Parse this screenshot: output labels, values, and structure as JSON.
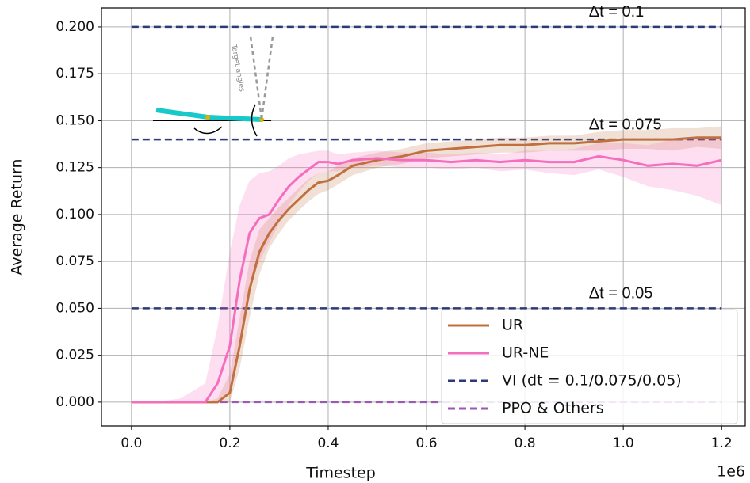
{
  "chart_data": {
    "type": "line",
    "xlabel": "Timestep",
    "ylabel": "Average Return",
    "x_offset_label": "1e6",
    "xlim": [
      -0.061,
      1.248
    ],
    "ylim": [
      -0.0127,
      0.2101
    ],
    "xticks": [
      {
        "value": 0,
        "label": "0.0"
      },
      0.2,
      0.4,
      0.6,
      0.8,
      {
        "value": 1,
        "label": "1.0"
      },
      1.2
    ],
    "yticks": [
      {
        "value": 0,
        "label": "0.000"
      },
      {
        "value": 0.025,
        "label": "0.025"
      },
      {
        "value": 0.05,
        "label": "0.050"
      },
      {
        "value": 0.075,
        "label": "0.075"
      },
      {
        "value": 0.1,
        "label": "0.100"
      },
      {
        "value": 0.125,
        "label": "0.125"
      },
      {
        "value": 0.15,
        "label": "0.150"
      },
      {
        "value": 0.175,
        "label": "0.175"
      },
      {
        "value": 0.2,
        "label": "0.200"
      }
    ],
    "grid": true,
    "legend": "lower right",
    "x": [
      0,
      0.05,
      0.1,
      0.15,
      0.175,
      0.2,
      0.22,
      0.24,
      0.26,
      0.28,
      0.3,
      0.32,
      0.34,
      0.36,
      0.38,
      0.4,
      0.42,
      0.45,
      0.5,
      0.55,
      0.6,
      0.65,
      0.7,
      0.75,
      0.8,
      0.85,
      0.9,
      0.95,
      1.0,
      1.05,
      1.1,
      1.15,
      1.2
    ],
    "series": [
      {
        "name": "UR",
        "color": "#c0703f",
        "values": [
          0,
          0,
          0,
          0,
          0,
          0.005,
          0.03,
          0.06,
          0.08,
          0.09,
          0.097,
          0.103,
          0.108,
          0.113,
          0.117,
          0.118,
          0.121,
          0.126,
          0.129,
          0.131,
          0.134,
          0.135,
          0.136,
          0.137,
          0.137,
          0.138,
          0.138,
          0.139,
          0.14,
          0.14,
          0.14,
          0.141,
          0.141
        ],
        "lower": [
          0,
          0,
          0,
          0,
          0,
          0,
          0.018,
          0.045,
          0.068,
          0.082,
          0.09,
          0.097,
          0.102,
          0.107,
          0.111,
          0.113,
          0.116,
          0.121,
          0.125,
          0.127,
          0.13,
          0.131,
          0.132,
          0.133,
          0.133,
          0.134,
          0.134,
          0.134,
          0.135,
          0.135,
          0.134,
          0.136,
          0.135
        ],
        "upper": [
          0,
          0,
          0,
          0,
          0.002,
          0.015,
          0.045,
          0.075,
          0.092,
          0.098,
          0.104,
          0.109,
          0.114,
          0.119,
          0.122,
          0.123,
          0.126,
          0.13,
          0.133,
          0.135,
          0.138,
          0.139,
          0.14,
          0.141,
          0.141,
          0.142,
          0.142,
          0.144,
          0.145,
          0.145,
          0.146,
          0.146,
          0.147
        ]
      },
      {
        "name": "UR-NE",
        "color": "#f56ebd",
        "values": [
          0,
          0,
          0,
          0,
          0.01,
          0.03,
          0.065,
          0.09,
          0.098,
          0.1,
          0.108,
          0.115,
          0.12,
          0.124,
          0.128,
          0.128,
          0.127,
          0.129,
          0.13,
          0.129,
          0.129,
          0.128,
          0.129,
          0.128,
          0.129,
          0.128,
          0.128,
          0.131,
          0.129,
          0.126,
          0.127,
          0.126,
          0.129
        ],
        "lower": [
          0,
          0,
          0,
          0,
          0,
          0.005,
          0.03,
          0.06,
          0.075,
          0.085,
          0.095,
          0.105,
          0.112,
          0.118,
          0.122,
          0.123,
          0.123,
          0.125,
          0.126,
          0.125,
          0.125,
          0.124,
          0.125,
          0.123,
          0.124,
          0.122,
          0.121,
          0.124,
          0.12,
          0.115,
          0.113,
          0.11,
          0.105
        ],
        "upper": [
          0,
          0,
          0.002,
          0.01,
          0.04,
          0.08,
          0.105,
          0.118,
          0.122,
          0.123,
          0.126,
          0.13,
          0.132,
          0.133,
          0.134,
          0.134,
          0.132,
          0.133,
          0.134,
          0.133,
          0.133,
          0.132,
          0.133,
          0.132,
          0.134,
          0.134,
          0.135,
          0.138,
          0.138,
          0.137,
          0.14,
          0.14,
          0.14
        ]
      }
    ],
    "hlines": [
      {
        "name": "VI (dt = 0.1/0.075/0.05)",
        "color": "#2e3a78",
        "values": [
          0.2,
          0.14,
          0.05
        ],
        "labels": [
          "Δt = 0.1",
          "Δt = 0.075",
          "Δt = 0.05"
        ],
        "xrange": [
          0,
          1.2
        ]
      },
      {
        "name": "PPO & Others",
        "color": "#9b59b6",
        "values": [
          0
        ],
        "xrange": [
          0,
          1.2
        ]
      }
    ],
    "inset": {
      "label": "Target angles"
    }
  }
}
